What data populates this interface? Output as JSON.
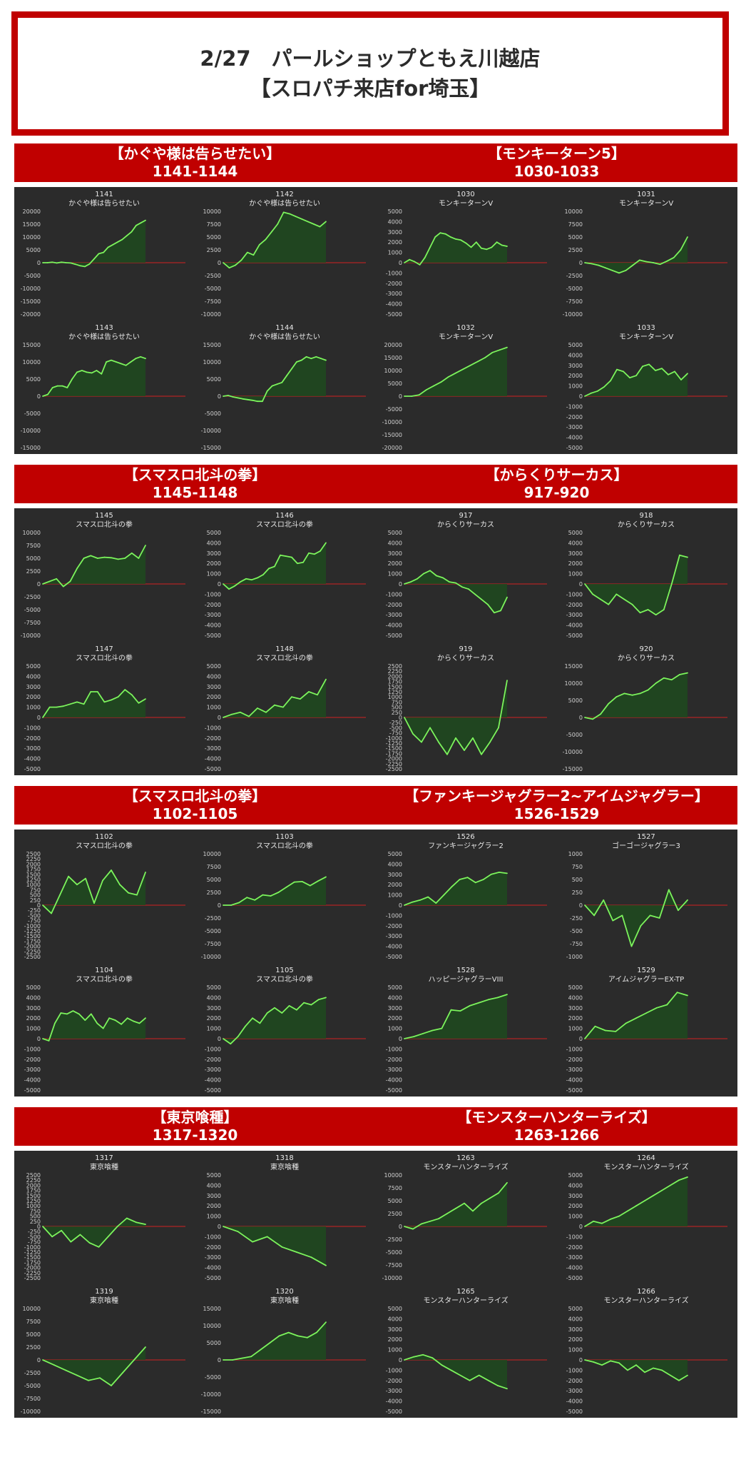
{
  "title": {
    "line1": "2/27　パールショップともえ川越店",
    "line2": "【スロパチ来店for埼玉】"
  },
  "colors": {
    "accent": "#c00000",
    "panel": "#2b2b2b",
    "line": "#7cf45c",
    "fill": "#1e4a1e",
    "zero": "#d02020"
  },
  "sections": [
    {
      "name": "【かぐや様は告らせたい】",
      "range": "1141-1144"
    },
    {
      "name": "【モンキーターン5】",
      "range": "1030-1033"
    },
    {
      "name": "【スマスロ北斗の拳】",
      "range": "1145-1148"
    },
    {
      "name": "【からくりサーカス】",
      "range": "917-920"
    },
    {
      "name": "【スマスロ北斗の拳】",
      "range": "1102-1105"
    },
    {
      "name": "【ファンキージャグラー2~アイムジャグラー】",
      "range": "1526-1529"
    },
    {
      "name": "【東京喰種】",
      "range": "1317-1320"
    },
    {
      "name": "【モンスターハンターライズ】",
      "range": "1263-1266"
    }
  ],
  "chart_data": [
    {
      "type": "area",
      "title": "1141",
      "subtitle": "かぐや様は告らせたい",
      "ylim": [
        -20000,
        20000
      ],
      "step": 5000,
      "values": [
        0,
        0,
        200,
        -100,
        200,
        0,
        -100,
        -600,
        -1200,
        -1500,
        -500,
        1500,
        3500,
        4000,
        6000,
        7000,
        8000,
        9000,
        10500,
        12000,
        14500,
        15500,
        16500
      ]
    },
    {
      "type": "area",
      "title": "1142",
      "subtitle": "かぐや様は告らせたい",
      "ylim": [
        -10000,
        10000
      ],
      "step": 2500,
      "values": [
        0,
        -1000,
        -500,
        500,
        2000,
        1500,
        3500,
        4500,
        6000,
        7500,
        9800,
        9500,
        9000,
        8500,
        8000,
        7500,
        7000,
        8000
      ]
    },
    {
      "type": "area",
      "title": "1143",
      "subtitle": "かぐや様は告らせたい",
      "ylim": [
        -15000,
        15000
      ],
      "step": 5000,
      "values": [
        0,
        500,
        2500,
        3000,
        3000,
        2500,
        5000,
        7000,
        7500,
        7000,
        6800,
        7500,
        6500,
        10000,
        10500,
        10000,
        9500,
        9000,
        10000,
        11000,
        11500,
        11000
      ]
    },
    {
      "type": "area",
      "title": "1144",
      "subtitle": "かぐや様は告らせたい",
      "ylim": [
        -15000,
        15000
      ],
      "step": 5000,
      "values": [
        0,
        200,
        -200,
        -500,
        -800,
        -1000,
        -1200,
        -1500,
        -1500,
        1500,
        3000,
        3500,
        4000,
        6000,
        8000,
        10000,
        10500,
        11500,
        11000,
        11500,
        11000,
        10500
      ]
    },
    {
      "type": "area",
      "title": "1030",
      "subtitle": "モンキーターンV",
      "ylim": [
        -5000,
        5000
      ],
      "step": 1000,
      "values": [
        0,
        300,
        100,
        -200,
        500,
        1500,
        2500,
        2900,
        2800,
        2500,
        2300,
        2200,
        1900,
        1500,
        2000,
        1400,
        1300,
        1500,
        2000,
        1700,
        1600
      ]
    },
    {
      "type": "area",
      "title": "1031",
      "subtitle": "モンキーターンV",
      "ylim": [
        -10000,
        10000
      ],
      "step": 2500,
      "values": [
        0,
        -200,
        -500,
        -1000,
        -1500,
        -2000,
        -1500,
        -500,
        500,
        200,
        0,
        -300,
        300,
        1000,
        2500,
        5000
      ]
    },
    {
      "type": "area",
      "title": "1032",
      "subtitle": "モンキーターンV",
      "ylim": [
        -20000,
        20000
      ],
      "step": 5000,
      "values": [
        0,
        0,
        500,
        2500,
        4000,
        5500,
        7500,
        9000,
        10500,
        12000,
        13500,
        15000,
        17000,
        18000,
        19000
      ]
    },
    {
      "type": "area",
      "title": "1033",
      "subtitle": "モンキーターンV",
      "ylim": [
        -5000,
        5000
      ],
      "step": 1000,
      "values": [
        0,
        300,
        500,
        900,
        1500,
        2600,
        2400,
        1800,
        2000,
        2900,
        3100,
        2500,
        2700,
        2100,
        2400,
        1600,
        2200
      ]
    },
    {
      "type": "area",
      "title": "1145",
      "subtitle": "スマスロ北斗の拳",
      "ylim": [
        -10000,
        10000
      ],
      "step": 2500,
      "values": [
        0,
        500,
        1000,
        -500,
        500,
        3000,
        5000,
        5500,
        5000,
        5200,
        5100,
        4800,
        5000,
        6000,
        5000,
        7500
      ]
    },
    {
      "type": "area",
      "title": "1146",
      "subtitle": "スマスロ北斗の拳",
      "ylim": [
        -5000,
        5000
      ],
      "step": 1000,
      "values": [
        0,
        -500,
        -200,
        200,
        500,
        400,
        600,
        900,
        1500,
        1700,
        2800,
        2700,
        2600,
        2000,
        2100,
        3000,
        2900,
        3200,
        4000
      ]
    },
    {
      "type": "area",
      "title": "1147",
      "subtitle": "スマスロ北斗の拳",
      "ylim": [
        -5000,
        5000
      ],
      "step": 1000,
      "values": [
        0,
        1000,
        1000,
        1100,
        1300,
        1500,
        1300,
        2500,
        2500,
        1500,
        1700,
        2000,
        2700,
        2200,
        1400,
        1800
      ]
    },
    {
      "type": "area",
      "title": "1148",
      "subtitle": "スマスロ北斗の拳",
      "ylim": [
        -5000,
        5000
      ],
      "step": 1000,
      "values": [
        0,
        300,
        500,
        100,
        900,
        500,
        1200,
        1000,
        2000,
        1800,
        2500,
        2200,
        3700
      ]
    },
    {
      "type": "area",
      "title": "917",
      "subtitle": "からくりサーカス",
      "ylim": [
        -5000,
        5000
      ],
      "step": 1000,
      "values": [
        0,
        200,
        500,
        1000,
        1300,
        800,
        600,
        200,
        100,
        -300,
        -500,
        -1000,
        -1500,
        -2000,
        -2800,
        -2600,
        -1300
      ]
    },
    {
      "type": "area",
      "title": "918",
      "subtitle": "からくりサーカス",
      "ylim": [
        -5000,
        5000
      ],
      "step": 1000,
      "values": [
        0,
        -1000,
        -1500,
        -2000,
        -1000,
        -1500,
        -2000,
        -2800,
        -2500,
        -3000,
        -2500,
        0,
        2800,
        2600
      ]
    },
    {
      "type": "area",
      "title": "919",
      "subtitle": "からくりサーカス",
      "ylim": [
        -2500,
        2500
      ],
      "step": 250,
      "values": [
        0,
        -800,
        -1200,
        -500,
        -1200,
        -1800,
        -1000,
        -1600,
        -1000,
        -1800,
        -1200,
        -500,
        1800
      ]
    },
    {
      "type": "area",
      "title": "920",
      "subtitle": "からくりサーカス",
      "ylim": [
        -15000,
        15000
      ],
      "step": 5000,
      "values": [
        0,
        -500,
        1000,
        4000,
        6000,
        7000,
        6500,
        7000,
        8000,
        10000,
        11500,
        11000,
        12500,
        13000
      ]
    },
    {
      "type": "area",
      "title": "1102",
      "subtitle": "スマスロ北斗の拳",
      "ylim": [
        -2500,
        2500
      ],
      "step": 250,
      "values": [
        0,
        -400,
        500,
        1400,
        1000,
        1300,
        100,
        1200,
        1700,
        1000,
        600,
        500,
        1600
      ]
    },
    {
      "type": "area",
      "title": "1103",
      "subtitle": "スマスロ北斗の拳",
      "ylim": [
        -10000,
        10000
      ],
      "step": 2500,
      "values": [
        0,
        0,
        500,
        1500,
        1000,
        2000,
        1800,
        2500,
        3500,
        4500,
        4600,
        3800,
        4700,
        5500
      ]
    },
    {
      "type": "area",
      "title": "1104",
      "subtitle": "スマスロ北斗の拳",
      "ylim": [
        -5000,
        5000
      ],
      "step": 1000,
      "values": [
        0,
        -200,
        1500,
        2500,
        2400,
        2700,
        2400,
        1800,
        2400,
        1500,
        1000,
        2000,
        1800,
        1400,
        2000,
        1700,
        1500,
        2000
      ]
    },
    {
      "type": "area",
      "title": "1105",
      "subtitle": "スマスロ北斗の拳",
      "ylim": [
        -5000,
        5000
      ],
      "step": 1000,
      "values": [
        0,
        -500,
        200,
        1200,
        2000,
        1500,
        2500,
        3000,
        2500,
        3200,
        2800,
        3500,
        3300,
        3800,
        4000
      ]
    },
    {
      "type": "area",
      "title": "1526",
      "subtitle": "ファンキージャグラー2",
      "ylim": [
        -5000,
        5000
      ],
      "step": 1000,
      "values": [
        0,
        300,
        500,
        800,
        200,
        1000,
        1800,
        2500,
        2700,
        2200,
        2500,
        3000,
        3200,
        3100
      ]
    },
    {
      "type": "area",
      "title": "1527",
      "subtitle": "ゴーゴージャグラー3",
      "ylim": [
        -1000,
        1000
      ],
      "step": 250,
      "values": [
        0,
        -200,
        100,
        -300,
        -200,
        -800,
        -400,
        -200,
        -250,
        300,
        -100,
        100
      ]
    },
    {
      "type": "area",
      "title": "1528",
      "subtitle": "ハッピージャグラーVIII",
      "ylim": [
        -5000,
        5000
      ],
      "step": 1000,
      "values": [
        0,
        200,
        500,
        800,
        1000,
        2800,
        2700,
        3200,
        3500,
        3800,
        4000,
        4300
      ]
    },
    {
      "type": "area",
      "title": "1529",
      "subtitle": "アイムジャグラーEX-TP",
      "ylim": [
        -5000,
        5000
      ],
      "step": 1000,
      "values": [
        0,
        1200,
        800,
        700,
        1500,
        2000,
        2500,
        3000,
        3300,
        4500,
        4200
      ]
    },
    {
      "type": "area",
      "title": "1317",
      "subtitle": "東京喰種",
      "ylim": [
        -2500,
        2500
      ],
      "step": 250,
      "values": [
        0,
        -500,
        -200,
        -750,
        -400,
        -800,
        -1000,
        -500,
        0,
        400,
        200,
        100
      ]
    },
    {
      "type": "area",
      "title": "1318",
      "subtitle": "東京喰種",
      "ylim": [
        -5000,
        5000
      ],
      "step": 1000,
      "values": [
        0,
        -500,
        -1500,
        -1000,
        -2000,
        -2500,
        -3000,
        -3800
      ]
    },
    {
      "type": "area",
      "title": "1319",
      "subtitle": "東京喰種",
      "ylim": [
        -10000,
        10000
      ],
      "step": 2500,
      "values": [
        0,
        -1000,
        -2000,
        -3000,
        -4000,
        -3500,
        -5000,
        -2500,
        0,
        2500
      ]
    },
    {
      "type": "area",
      "title": "1320",
      "subtitle": "東京喰種",
      "ylim": [
        -15000,
        15000
      ],
      "step": 5000,
      "values": [
        0,
        0,
        500,
        1000,
        3000,
        5000,
        7000,
        8000,
        7000,
        6500,
        8000,
        11000
      ]
    },
    {
      "type": "area",
      "title": "1263",
      "subtitle": "モンスターハンターライズ",
      "ylim": [
        -10000,
        10000
      ],
      "step": 2500,
      "values": [
        0,
        -500,
        500,
        1000,
        1500,
        2500,
        3500,
        4500,
        3000,
        4500,
        5500,
        6500,
        8500
      ]
    },
    {
      "type": "area",
      "title": "1264",
      "subtitle": "モンスターハンターライズ",
      "ylim": [
        -5000,
        5000
      ],
      "step": 1000,
      "values": [
        0,
        500,
        300,
        700,
        1000,
        1500,
        2000,
        2500,
        3000,
        3500,
        4000,
        4500,
        4800
      ]
    },
    {
      "type": "area",
      "title": "1265",
      "subtitle": "モンスターハンターライズ",
      "ylim": [
        -5000,
        5000
      ],
      "step": 1000,
      "values": [
        0,
        300,
        500,
        200,
        -500,
        -1000,
        -1500,
        -2000,
        -1500,
        -2000,
        -2500,
        -2800
      ]
    },
    {
      "type": "area",
      "title": "1266",
      "subtitle": "モンスターハンターライズ",
      "ylim": [
        -5000,
        5000
      ],
      "step": 1000,
      "values": [
        0,
        -200,
        -500,
        -100,
        -300,
        -1000,
        -500,
        -1200,
        -800,
        -1000,
        -1500,
        -2000,
        -1500
      ]
    }
  ]
}
